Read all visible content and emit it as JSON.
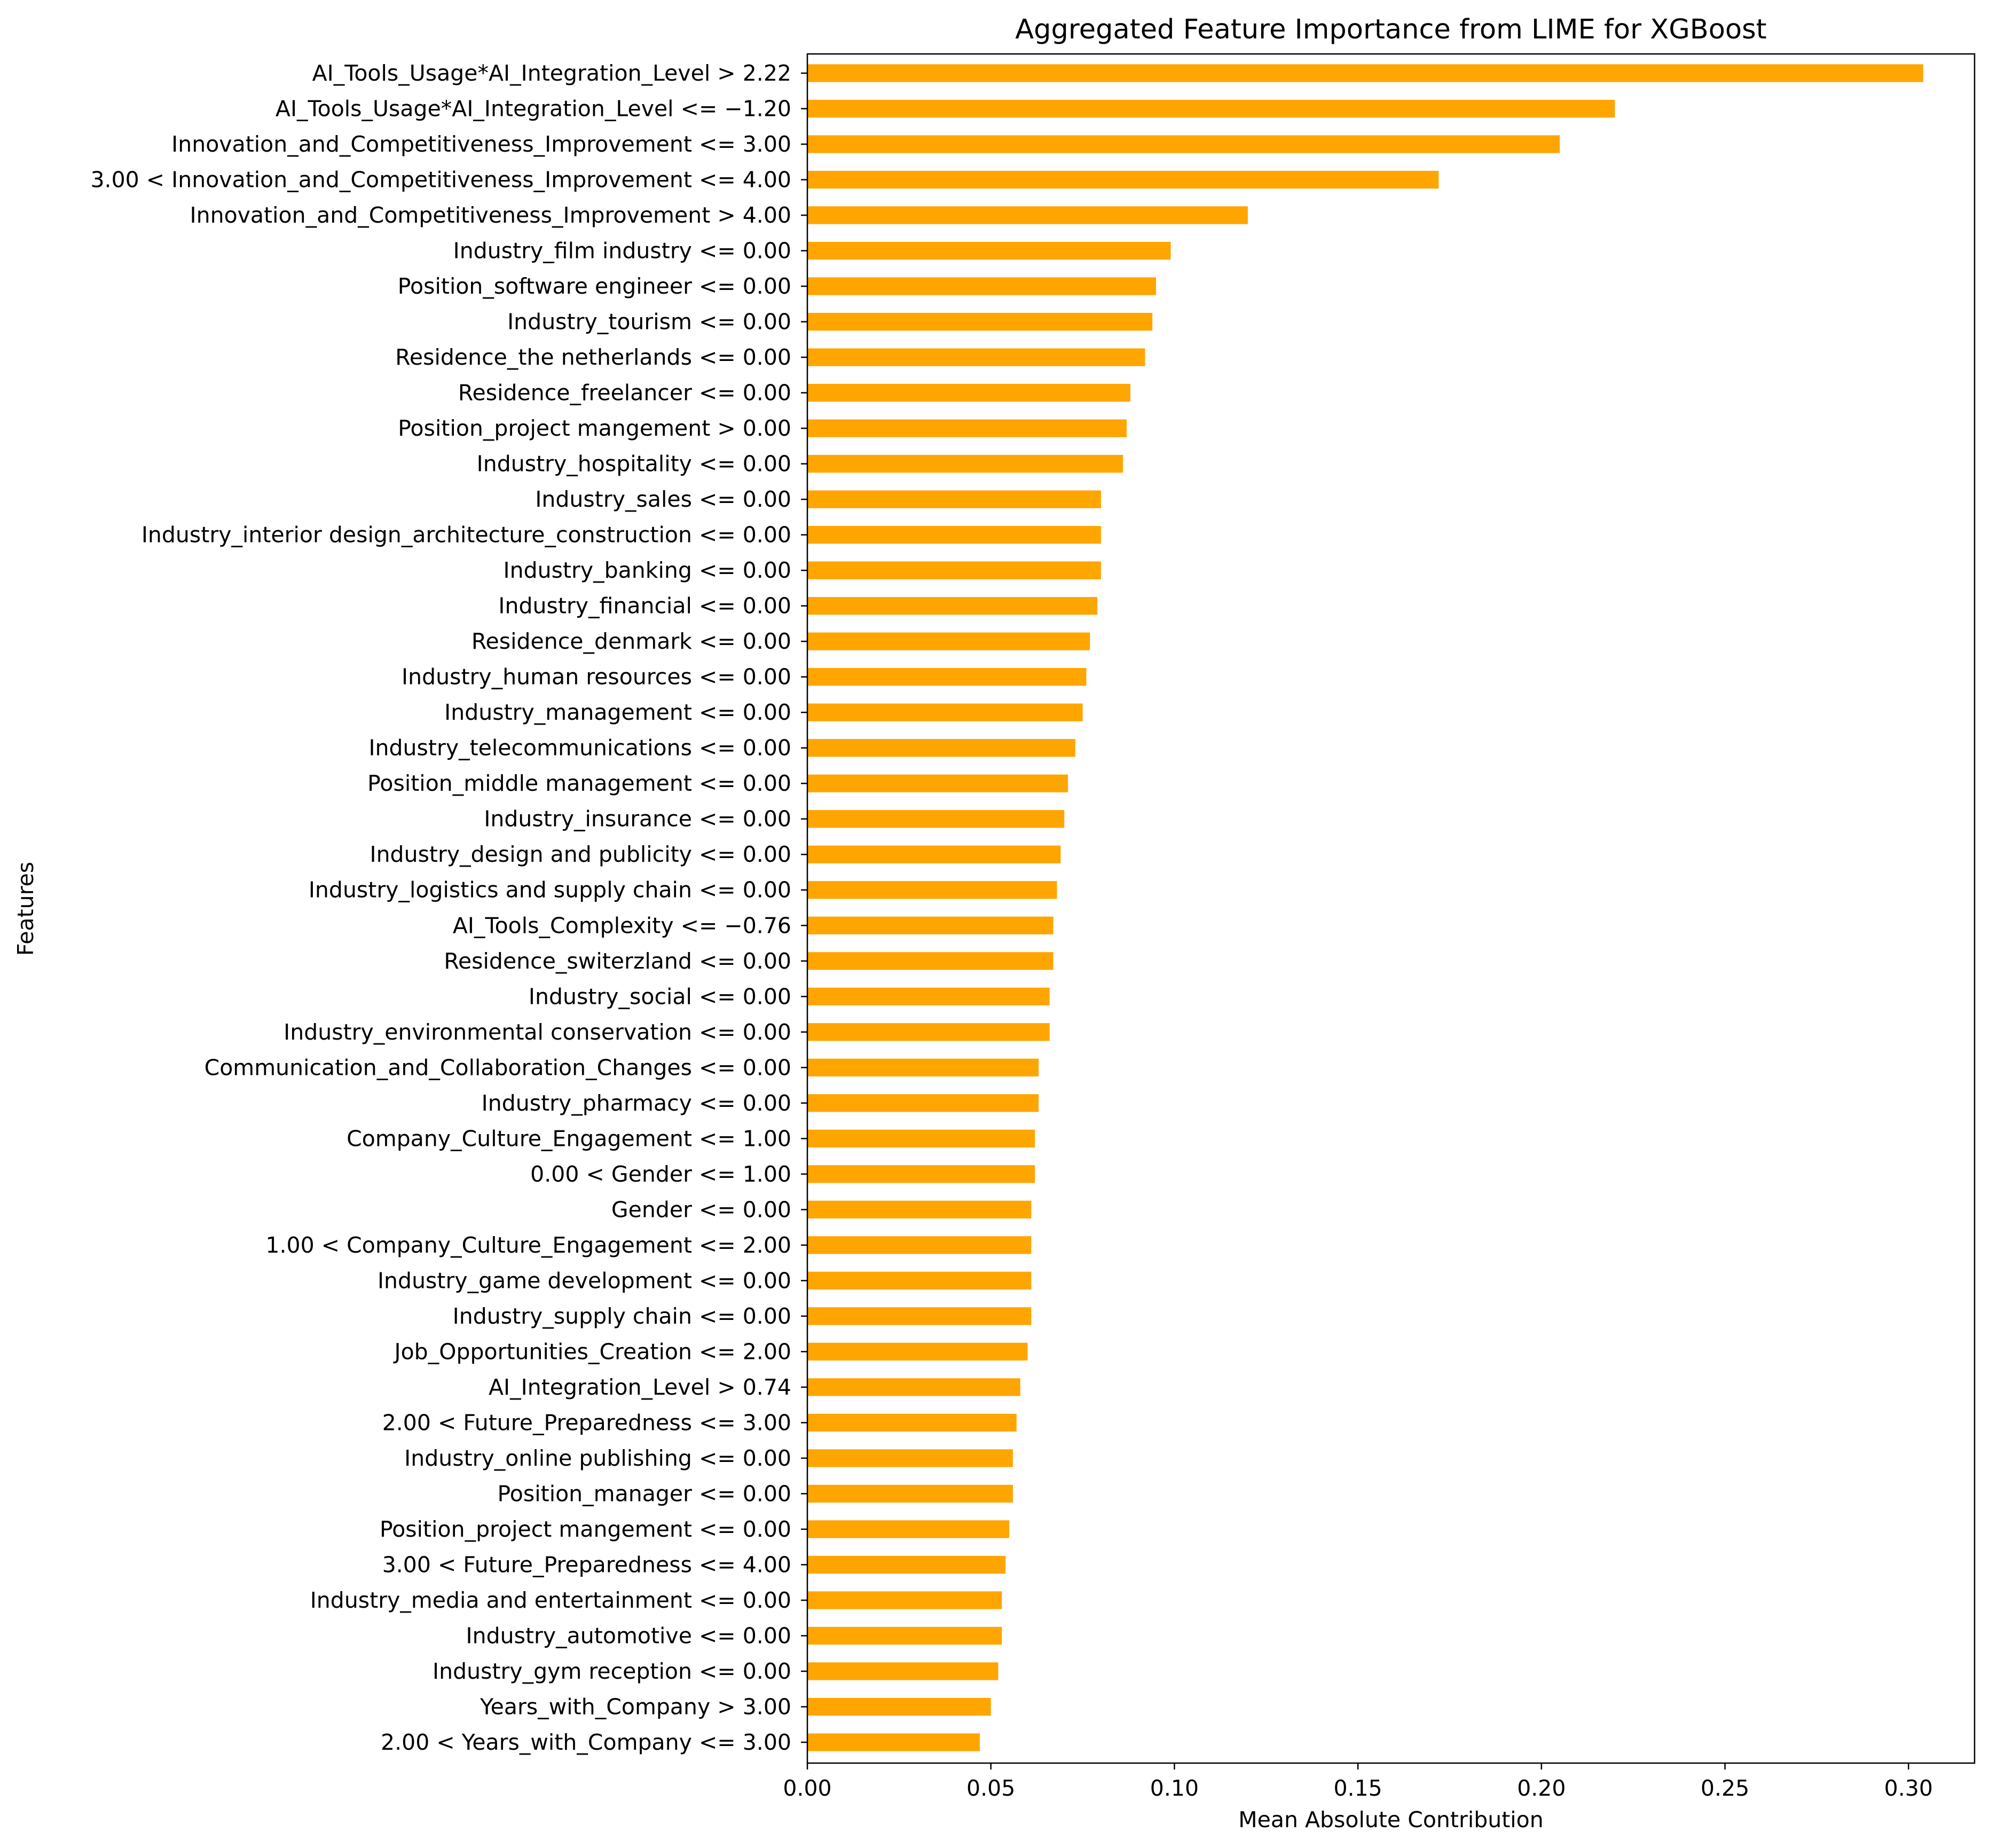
{
  "chart_data": {
    "type": "bar",
    "orientation": "horizontal",
    "title": "Aggregated Feature Importance from LIME for XGBoost",
    "xlabel": "Mean Absolute Contribution",
    "ylabel": "Features",
    "xlim": [
      0,
      0.318
    ],
    "xticks": [
      0.0,
      0.05,
      0.1,
      0.15,
      0.2,
      0.25,
      0.3
    ],
    "xtick_labels": [
      "0.00",
      "0.05",
      "0.10",
      "0.15",
      "0.20",
      "0.25",
      "0.30"
    ],
    "grid": false,
    "bar_color": "#FFA500",
    "categories": [
      "AI_Tools_Usage*AI_Integration_Level > 2.22",
      "AI_Tools_Usage*AI_Integration_Level <= −1.20",
      "Innovation_and_Competitiveness_Improvement <= 3.00",
      "3.00 < Innovation_and_Competitiveness_Improvement <= 4.00",
      "Innovation_and_Competitiveness_Improvement > 4.00",
      "Industry_film industry <= 0.00",
      "Position_software engineer <= 0.00",
      "Industry_tourism <= 0.00",
      "Residence_the netherlands <= 0.00",
      "Residence_freelancer <= 0.00",
      "Position_project mangement > 0.00",
      "Industry_hospitality <= 0.00",
      "Industry_sales <= 0.00",
      "Industry_interior design_architecture_construction <= 0.00",
      "Industry_banking <= 0.00",
      "Industry_financial <= 0.00",
      "Residence_denmark <= 0.00",
      "Industry_human resources <= 0.00",
      "Industry_management <= 0.00",
      "Industry_telecommunications <= 0.00",
      "Position_middle management <= 0.00",
      "Industry_insurance <= 0.00",
      "Industry_design and publicity <= 0.00",
      "Industry_logistics and supply chain <= 0.00",
      "AI_Tools_Complexity <= −0.76",
      "Residence_switerzland <= 0.00",
      "Industry_social <= 0.00",
      "Industry_environmental conservation <= 0.00",
      "Communication_and_Collaboration_Changes <= 0.00",
      "Industry_pharmacy <= 0.00",
      "Company_Culture_Engagement <= 1.00",
      "0.00 < Gender <= 1.00",
      "Gender <= 0.00",
      "1.00 < Company_Culture_Engagement <= 2.00",
      "Industry_game development <= 0.00",
      "Industry_supply chain <= 0.00",
      "Job_Opportunities_Creation <= 2.00",
      "AI_Integration_Level > 0.74",
      "2.00 < Future_Preparedness <= 3.00",
      "Industry_online publishing <= 0.00",
      "Position_manager <= 0.00",
      "Position_project mangement <= 0.00",
      "3.00 < Future_Preparedness <= 4.00",
      "Industry_media and entertainment <= 0.00",
      "Industry_automotive <= 0.00",
      "Industry_gym reception <= 0.00",
      "Years_with_Company > 3.00",
      "2.00 < Years_with_Company <= 3.00"
    ],
    "values": [
      0.304,
      0.22,
      0.205,
      0.172,
      0.12,
      0.099,
      0.095,
      0.094,
      0.092,
      0.088,
      0.087,
      0.086,
      0.08,
      0.08,
      0.08,
      0.079,
      0.077,
      0.076,
      0.075,
      0.073,
      0.071,
      0.07,
      0.069,
      0.068,
      0.067,
      0.067,
      0.066,
      0.066,
      0.063,
      0.063,
      0.062,
      0.062,
      0.061,
      0.061,
      0.061,
      0.061,
      0.06,
      0.058,
      0.057,
      0.056,
      0.056,
      0.055,
      0.054,
      0.053,
      0.053,
      0.052,
      0.05,
      0.047
    ]
  }
}
